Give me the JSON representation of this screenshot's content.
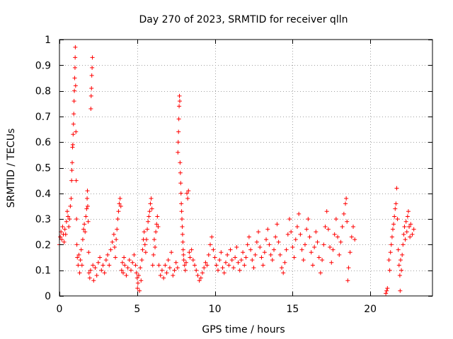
{
  "chart_data": {
    "type": "scatter",
    "title": "Day 270 of 2023, SRMTID for receiver qlln",
    "xlabel": "GPS time / hours",
    "ylabel": "SRMTID / TECUs",
    "xlim": [
      0,
      24
    ],
    "ylim": [
      0,
      1
    ],
    "xticks": [
      0,
      5,
      10,
      15,
      20
    ],
    "xtick_labels": [
      "0",
      "5",
      "10",
      "15",
      "20"
    ],
    "yticks": [
      0,
      0.1,
      0.2,
      0.3,
      0.4,
      0.5,
      0.6,
      0.7,
      0.8,
      0.9,
      1
    ],
    "ytick_labels": [
      "0",
      "0.1",
      "0.2",
      "0.3",
      "0.4",
      "0.5",
      "0.6",
      "0.7",
      "0.8",
      "0.9",
      "1"
    ],
    "grid": true,
    "marker": "+",
    "marker_color": "#ff0000",
    "series": [
      {
        "name": "SRMTID",
        "points": [
          [
            0.0,
            0.2
          ],
          [
            0.05,
            0.23
          ],
          [
            0.1,
            0.25
          ],
          [
            0.15,
            0.22
          ],
          [
            0.2,
            0.27
          ],
          [
            0.25,
            0.24
          ],
          [
            0.3,
            0.21
          ],
          [
            0.35,
            0.26
          ],
          [
            0.4,
            0.24
          ],
          [
            0.45,
            0.29
          ],
          [
            0.5,
            0.33
          ],
          [
            0.55,
            0.31
          ],
          [
            0.6,
            0.27
          ],
          [
            0.65,
            0.3
          ],
          [
            0.7,
            0.35
          ],
          [
            0.75,
            0.38
          ],
          [
            0.78,
            0.45
          ],
          [
            0.8,
            0.49
          ],
          [
            0.82,
            0.52
          ],
          [
            0.84,
            0.58
          ],
          [
            0.86,
            0.59
          ],
          [
            0.88,
            0.63
          ],
          [
            0.9,
            0.67
          ],
          [
            0.92,
            0.71
          ],
          [
            0.94,
            0.76
          ],
          [
            0.96,
            0.8
          ],
          [
            0.98,
            0.85
          ],
          [
            1.0,
            0.89
          ],
          [
            1.01,
            0.93
          ],
          [
            1.02,
            0.97
          ],
          [
            1.04,
            0.82
          ],
          [
            1.06,
            0.64
          ],
          [
            1.08,
            0.45
          ],
          [
            1.1,
            0.3
          ],
          [
            1.12,
            0.2
          ],
          [
            1.15,
            0.15
          ],
          [
            1.2,
            0.12
          ],
          [
            1.25,
            0.16
          ],
          [
            1.3,
            0.09
          ],
          [
            1.35,
            0.14
          ],
          [
            1.4,
            0.18
          ],
          [
            1.45,
            0.12
          ],
          [
            1.5,
            0.22
          ],
          [
            1.55,
            0.26
          ],
          [
            1.6,
            0.28
          ],
          [
            1.65,
            0.25
          ],
          [
            1.7,
            0.31
          ],
          [
            1.75,
            0.34
          ],
          [
            1.78,
            0.38
          ],
          [
            1.8,
            0.41
          ],
          [
            1.82,
            0.35
          ],
          [
            1.85,
            0.29
          ],
          [
            1.88,
            0.17
          ],
          [
            1.9,
            0.09
          ],
          [
            1.95,
            0.07
          ],
          [
            2.0,
            0.1
          ],
          [
            2.02,
            0.73
          ],
          [
            2.04,
            0.78
          ],
          [
            2.06,
            0.81
          ],
          [
            2.08,
            0.86
          ],
          [
            2.1,
            0.89
          ],
          [
            2.12,
            0.93
          ],
          [
            2.15,
            0.12
          ],
          [
            2.2,
            0.06
          ],
          [
            2.3,
            0.11
          ],
          [
            2.4,
            0.08
          ],
          [
            2.5,
            0.13
          ],
          [
            2.6,
            0.15
          ],
          [
            2.7,
            0.1
          ],
          [
            2.8,
            0.12
          ],
          [
            2.9,
            0.09
          ],
          [
            3.0,
            0.14
          ],
          [
            3.1,
            0.16
          ],
          [
            3.2,
            0.12
          ],
          [
            3.3,
            0.18
          ],
          [
            3.4,
            0.21
          ],
          [
            3.5,
            0.24
          ],
          [
            3.55,
            0.19
          ],
          [
            3.6,
            0.15
          ],
          [
            3.65,
            0.22
          ],
          [
            3.7,
            0.26
          ],
          [
            3.75,
            0.3
          ],
          [
            3.8,
            0.33
          ],
          [
            3.85,
            0.36
          ],
          [
            3.9,
            0.38
          ],
          [
            3.95,
            0.35
          ],
          [
            4.0,
            0.1
          ],
          [
            4.05,
            0.13
          ],
          [
            4.1,
            0.09
          ],
          [
            4.15,
            0.15
          ],
          [
            4.2,
            0.12
          ],
          [
            4.3,
            0.08
          ],
          [
            4.4,
            0.11
          ],
          [
            4.5,
            0.14
          ],
          [
            4.6,
            0.1
          ],
          [
            4.7,
            0.13
          ],
          [
            4.8,
            0.16
          ],
          [
            4.9,
            0.12
          ],
          [
            4.95,
            0.09
          ],
          [
            5.0,
            0.07
          ],
          [
            5.02,
            0.03
          ],
          [
            5.05,
            0.05
          ],
          [
            5.1,
            0.08
          ],
          [
            5.15,
            0.02
          ],
          [
            5.2,
            0.11
          ],
          [
            5.25,
            0.06
          ],
          [
            5.3,
            0.14
          ],
          [
            5.35,
            0.18
          ],
          [
            5.4,
            0.22
          ],
          [
            5.45,
            0.25
          ],
          [
            5.5,
            0.2
          ],
          [
            5.55,
            0.17
          ],
          [
            5.6,
            0.22
          ],
          [
            5.65,
            0.26
          ],
          [
            5.7,
            0.29
          ],
          [
            5.75,
            0.31
          ],
          [
            5.8,
            0.33
          ],
          [
            5.85,
            0.36
          ],
          [
            5.9,
            0.38
          ],
          [
            5.95,
            0.34
          ],
          [
            6.0,
            0.12
          ],
          [
            6.05,
            0.16
          ],
          [
            6.1,
            0.22
          ],
          [
            6.15,
            0.19
          ],
          [
            6.2,
            0.25
          ],
          [
            6.25,
            0.28
          ],
          [
            6.3,
            0.31
          ],
          [
            6.35,
            0.27
          ],
          [
            6.4,
            0.12
          ],
          [
            6.5,
            0.08
          ],
          [
            6.6,
            0.1
          ],
          [
            6.7,
            0.07
          ],
          [
            6.8,
            0.12
          ],
          [
            6.9,
            0.09
          ],
          [
            7.0,
            0.14
          ],
          [
            7.1,
            0.11
          ],
          [
            7.2,
            0.17
          ],
          [
            7.3,
            0.08
          ],
          [
            7.4,
            0.1
          ],
          [
            7.5,
            0.13
          ],
          [
            7.6,
            0.11
          ],
          [
            7.62,
            0.56
          ],
          [
            7.64,
            0.6
          ],
          [
            7.66,
            0.64
          ],
          [
            7.68,
            0.69
          ],
          [
            7.7,
            0.74
          ],
          [
            7.72,
            0.78
          ],
          [
            7.74,
            0.76
          ],
          [
            7.76,
            0.52
          ],
          [
            7.78,
            0.48
          ],
          [
            7.8,
            0.44
          ],
          [
            7.82,
            0.4
          ],
          [
            7.84,
            0.36
          ],
          [
            7.86,
            0.33
          ],
          [
            7.88,
            0.3
          ],
          [
            7.9,
            0.27
          ],
          [
            7.92,
            0.24
          ],
          [
            7.94,
            0.21
          ],
          [
            7.96,
            0.18
          ],
          [
            7.98,
            0.16
          ],
          [
            8.0,
            0.14
          ],
          [
            8.05,
            0.12
          ],
          [
            8.1,
            0.1
          ],
          [
            8.15,
            0.13
          ],
          [
            8.2,
            0.4
          ],
          [
            8.25,
            0.38
          ],
          [
            8.3,
            0.41
          ],
          [
            8.35,
            0.17
          ],
          [
            8.4,
            0.15
          ],
          [
            8.5,
            0.18
          ],
          [
            8.6,
            0.14
          ],
          [
            8.7,
            0.12
          ],
          [
            8.8,
            0.1
          ],
          [
            8.9,
            0.08
          ],
          [
            9.0,
            0.06
          ],
          [
            9.1,
            0.07
          ],
          [
            9.2,
            0.09
          ],
          [
            9.3,
            0.11
          ],
          [
            9.4,
            0.13
          ],
          [
            9.5,
            0.12
          ],
          [
            9.6,
            0.16
          ],
          [
            9.7,
            0.2
          ],
          [
            9.8,
            0.23
          ],
          [
            9.9,
            0.18
          ],
          [
            10.0,
            0.15
          ],
          [
            10.1,
            0.12
          ],
          [
            10.2,
            0.1
          ],
          [
            10.3,
            0.14
          ],
          [
            10.4,
            0.17
          ],
          [
            10.5,
            0.11
          ],
          [
            10.6,
            0.09
          ],
          [
            10.7,
            0.13
          ],
          [
            10.8,
            0.16
          ],
          [
            10.9,
            0.12
          ],
          [
            11.0,
            0.18
          ],
          [
            11.1,
            0.14
          ],
          [
            11.2,
            0.11
          ],
          [
            11.3,
            0.15
          ],
          [
            11.4,
            0.19
          ],
          [
            11.5,
            0.13
          ],
          [
            11.6,
            0.1
          ],
          [
            11.7,
            0.14
          ],
          [
            11.8,
            0.17
          ],
          [
            11.9,
            0.12
          ],
          [
            12.0,
            0.15
          ],
          [
            12.1,
            0.2
          ],
          [
            12.2,
            0.23
          ],
          [
            12.3,
            0.18
          ],
          [
            12.4,
            0.14
          ],
          [
            12.5,
            0.11
          ],
          [
            12.6,
            0.16
          ],
          [
            12.7,
            0.21
          ],
          [
            12.8,
            0.25
          ],
          [
            12.9,
            0.19
          ],
          [
            13.0,
            0.15
          ],
          [
            13.1,
            0.12
          ],
          [
            13.2,
            0.17
          ],
          [
            13.3,
            0.22
          ],
          [
            13.4,
            0.26
          ],
          [
            13.5,
            0.2
          ],
          [
            13.6,
            0.16
          ],
          [
            13.7,
            0.14
          ],
          [
            13.8,
            0.18
          ],
          [
            13.9,
            0.23
          ],
          [
            14.0,
            0.28
          ],
          [
            14.1,
            0.21
          ],
          [
            14.2,
            0.16
          ],
          [
            14.3,
            0.11
          ],
          [
            14.4,
            0.09
          ],
          [
            14.5,
            0.13
          ],
          [
            14.6,
            0.18
          ],
          [
            14.7,
            0.24
          ],
          [
            14.8,
            0.3
          ],
          [
            14.9,
            0.25
          ],
          [
            15.0,
            0.19
          ],
          [
            15.1,
            0.15
          ],
          [
            15.2,
            0.22
          ],
          [
            15.3,
            0.27
          ],
          [
            15.4,
            0.32
          ],
          [
            15.5,
            0.24
          ],
          [
            15.6,
            0.18
          ],
          [
            15.7,
            0.14
          ],
          [
            15.8,
            0.2
          ],
          [
            15.9,
            0.26
          ],
          [
            16.0,
            0.3
          ],
          [
            16.1,
            0.23
          ],
          [
            16.2,
            0.17
          ],
          [
            16.3,
            0.12
          ],
          [
            16.4,
            0.19
          ],
          [
            16.5,
            0.25
          ],
          [
            16.6,
            0.21
          ],
          [
            16.7,
            0.15
          ],
          [
            16.8,
            0.09
          ],
          [
            16.9,
            0.14
          ],
          [
            17.0,
            0.2
          ],
          [
            17.1,
            0.27
          ],
          [
            17.2,
            0.33
          ],
          [
            17.3,
            0.26
          ],
          [
            17.4,
            0.19
          ],
          [
            17.5,
            0.13
          ],
          [
            17.6,
            0.18
          ],
          [
            17.7,
            0.24
          ],
          [
            17.8,
            0.3
          ],
          [
            17.9,
            0.23
          ],
          [
            18.0,
            0.16
          ],
          [
            18.1,
            0.21
          ],
          [
            18.2,
            0.27
          ],
          [
            18.3,
            0.32
          ],
          [
            18.4,
            0.36
          ],
          [
            18.45,
            0.38
          ],
          [
            18.5,
            0.29
          ],
          [
            18.55,
            0.06
          ],
          [
            18.6,
            0.11
          ],
          [
            18.7,
            0.17
          ],
          [
            18.8,
            0.23
          ],
          [
            18.9,
            0.27
          ],
          [
            19.0,
            0.22
          ],
          [
            21.0,
            0.01
          ],
          [
            21.05,
            0.02
          ],
          [
            21.1,
            0.03
          ],
          [
            21.2,
            0.14
          ],
          [
            21.25,
            0.1
          ],
          [
            21.3,
            0.17
          ],
          [
            21.35,
            0.2
          ],
          [
            21.4,
            0.23
          ],
          [
            21.45,
            0.26
          ],
          [
            21.5,
            0.28
          ],
          [
            21.55,
            0.31
          ],
          [
            21.6,
            0.34
          ],
          [
            21.65,
            0.36
          ],
          [
            21.7,
            0.42
          ],
          [
            21.75,
            0.3
          ],
          [
            21.8,
            0.18
          ],
          [
            21.85,
            0.12
          ],
          [
            21.9,
            0.08
          ],
          [
            21.92,
            0.02
          ],
          [
            21.95,
            0.14
          ],
          [
            22.0,
            0.1
          ],
          [
            22.05,
            0.16
          ],
          [
            22.1,
            0.2
          ],
          [
            22.15,
            0.24
          ],
          [
            22.2,
            0.27
          ],
          [
            22.25,
            0.22
          ],
          [
            22.3,
            0.29
          ],
          [
            22.35,
            0.25
          ],
          [
            22.4,
            0.31
          ],
          [
            22.45,
            0.33
          ],
          [
            22.5,
            0.27
          ],
          [
            22.55,
            0.23
          ],
          [
            22.6,
            0.28
          ],
          [
            22.7,
            0.24
          ],
          [
            22.8,
            0.26
          ]
        ]
      }
    ]
  }
}
